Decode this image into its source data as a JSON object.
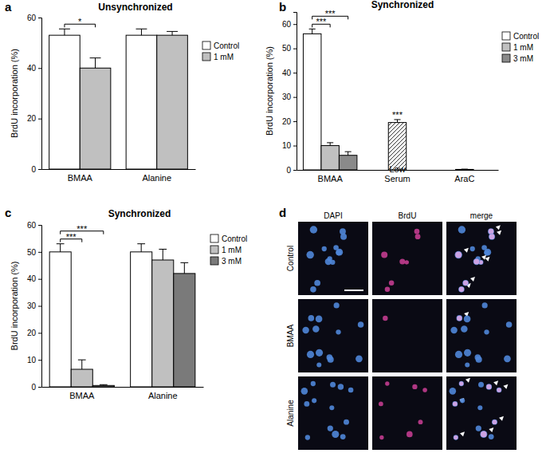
{
  "chart_data": [
    {
      "type": "bar",
      "panel": "a",
      "title": "Unsynchronized",
      "y_label": "BrdU incorporation (%)",
      "categories": [
        "BMAA",
        "Alanine"
      ],
      "series": [
        {
          "name": "Control",
          "color": "#ffffff",
          "values": [
            53,
            53
          ],
          "errors": [
            2.5,
            2.5
          ]
        },
        {
          "name": "1 mM",
          "color": "#c0c0c0",
          "values": [
            40,
            53
          ],
          "errors": [
            4,
            1.5
          ]
        }
      ],
      "ylim": [
        0,
        60
      ],
      "yticks": [
        0,
        20,
        40,
        60
      ],
      "annotations": [
        {
          "category": "BMAA",
          "series": [
            "Control",
            "1 mM"
          ],
          "label": "*"
        }
      ]
    },
    {
      "type": "bar",
      "panel": "b",
      "title": "Synchronized",
      "y_label": "BrdU incorporation (%)",
      "categories": [
        "BMAA",
        "Low Serum",
        "AraC"
      ],
      "series": [
        {
          "name": "Control",
          "color": "#ffffff",
          "values": [
            56,
            null,
            null
          ],
          "errors": [
            2,
            null,
            null
          ]
        },
        {
          "name": "1 mM",
          "color": "#c0c0c0",
          "values": [
            10,
            null,
            null
          ],
          "errors": [
            1.2,
            null,
            null
          ]
        },
        {
          "name": "3 mM",
          "color": "#8a8a8a",
          "values": [
            6,
            null,
            null
          ],
          "errors": [
            1.5,
            null,
            null
          ]
        },
        {
          "color": "#ffffff",
          "marker": "hatch",
          "values": [
            null,
            19.5,
            0.2
          ],
          "errors": [
            null,
            1.2,
            0.1
          ]
        }
      ],
      "ylim": [
        0,
        65
      ],
      "yticks": [
        0,
        10,
        20,
        30,
        40,
        50,
        60
      ],
      "annotations": [
        {
          "category": "BMAA",
          "series": [
            "Control",
            "1 mM"
          ],
          "label": "***"
        },
        {
          "category": "BMAA",
          "series": [
            "Control",
            "3 mM"
          ],
          "label": "***"
        },
        {
          "category": "Low Serum",
          "label": "***"
        }
      ]
    },
    {
      "type": "bar",
      "panel": "c",
      "title": "Synchronized",
      "y_label": "BrdU incorporation (%)",
      "categories": [
        "BMAA",
        "Alanine"
      ],
      "series": [
        {
          "name": "Control",
          "color": "#ffffff",
          "values": [
            50,
            50
          ],
          "errors": [
            3,
            3
          ]
        },
        {
          "name": "1 mM",
          "color": "#c0c0c0",
          "values": [
            6.5,
            47
          ],
          "errors": [
            3.5,
            4
          ]
        },
        {
          "name": "3 mM",
          "color": "#7a7a7a",
          "values": [
            0.5,
            42
          ],
          "errors": [
            0.3,
            4
          ]
        }
      ],
      "ylim": [
        0,
        60
      ],
      "yticks": [
        0,
        10,
        20,
        30,
        40,
        50,
        60
      ],
      "annotations": [
        {
          "category": "BMAA",
          "series": [
            "Control",
            "1 mM"
          ],
          "label": "***"
        },
        {
          "category": "BMAA",
          "series": [
            "Control",
            "3 mM"
          ],
          "label": "***"
        }
      ]
    }
  ],
  "image_panel": {
    "panel": "d",
    "columns": [
      "DAPI",
      "BrdU",
      "merge"
    ],
    "rows": [
      "Control",
      "BMAA",
      "Alanine"
    ]
  }
}
